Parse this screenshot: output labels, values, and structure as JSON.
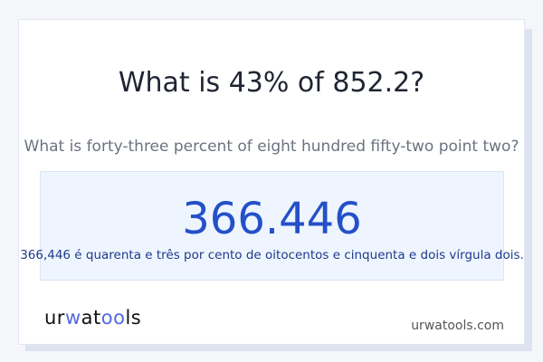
{
  "title": "What is 43% of 852.2?",
  "subtitle": "What is forty-three percent of eight hundred fifty-two point two?",
  "answer": "366.446",
  "answer_words": "366,446 é quarenta e três por cento de oitocentos e cinquenta e dois vírgula dois.",
  "logo": {
    "part1": "ur",
    "part2": "wat",
    "part3": "oo",
    "part4": "ls",
    "text": "urwatools"
  },
  "site": "urwatools.com"
}
